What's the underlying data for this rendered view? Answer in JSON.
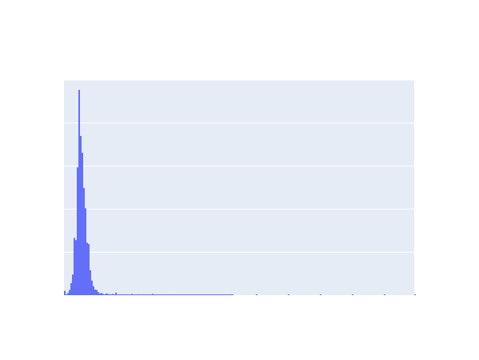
{
  "chart_data": {
    "type": "bar",
    "title": "",
    "xlabel": "",
    "ylabel": "",
    "legend": "none",
    "grid": "horizontal",
    "colors": {
      "background": "#ffffff",
      "plot_background": "#e5ecf6",
      "gridline": "#ffffff",
      "bar": "#636efa"
    },
    "x_range": [
      0,
      219
    ],
    "ylim": [
      0,
      5
    ],
    "gridlines_y": [
      1,
      2,
      3,
      4,
      5
    ],
    "bins": [
      0,
      1,
      2,
      3,
      4,
      5,
      6,
      7,
      8,
      9,
      10,
      11,
      12,
      13,
      14,
      15,
      16,
      17,
      18,
      19,
      20,
      21,
      22,
      23,
      24,
      25,
      26,
      27,
      28,
      29,
      30,
      31,
      32,
      33,
      34,
      35,
      36,
      37,
      38,
      39,
      40,
      41,
      42,
      43,
      44,
      45,
      46,
      47,
      48,
      49,
      50,
      51,
      52,
      53,
      54,
      55,
      56,
      57,
      58,
      59,
      60,
      61,
      62,
      63,
      64,
      65,
      66,
      67,
      68,
      69,
      70,
      71,
      72,
      73,
      74,
      75,
      76,
      77,
      78,
      79,
      80,
      81,
      82,
      83,
      84,
      85,
      86,
      87,
      88,
      89,
      90,
      91,
      92,
      93,
      94,
      95,
      96,
      97,
      98,
      99,
      100,
      101,
      102,
      103,
      104,
      105
    ],
    "values": [
      0.1,
      0.02,
      0.05,
      0.12,
      0.28,
      0.48,
      1.33,
      1.28,
      2.97,
      4.77,
      3.7,
      3.31,
      2.49,
      2.02,
      1.22,
      1.19,
      0.58,
      0.34,
      0.21,
      0.13,
      0.12,
      0.07,
      0.04,
      0.05,
      0.03,
      0.02,
      0.04,
      0.03,
      0.02,
      0.02,
      0.03,
      0.01,
      0.06,
      0.02,
      0.01,
      0.02,
      0.01,
      0.02,
      0.01,
      0.02,
      0.01,
      0.01,
      0.03,
      0.01,
      0.01,
      0.01,
      0.02,
      0.01,
      0.01,
      0.02,
      0.01,
      0.01,
      0.01,
      0.01,
      0.01,
      0.03,
      0.01,
      0.01,
      0.01,
      0.01,
      0.01,
      0.01,
      0.01,
      0.01,
      0.01,
      0.01,
      0.01,
      0.01,
      0.02,
      0.01,
      0.01,
      0.01,
      0.01,
      0.01,
      0.01,
      0.01,
      0.01,
      0.01,
      0.01,
      0.01,
      0.01,
      0.01,
      0.01,
      0.01,
      0.01,
      0.01,
      0.01,
      0.01,
      0.01,
      0.01,
      0.01,
      0.01,
      0.01,
      0.01,
      0.01,
      0.01,
      0.01,
      0.01,
      0.01,
      0.01,
      0.01,
      0.01,
      0.01,
      0.01,
      0.02,
      0.01
    ],
    "tail": {
      "x": [
        120,
        140,
        160,
        180,
        200,
        219
      ],
      "values": [
        0.02,
        0.01,
        0.01,
        0.01,
        0.01,
        0.02
      ]
    }
  }
}
